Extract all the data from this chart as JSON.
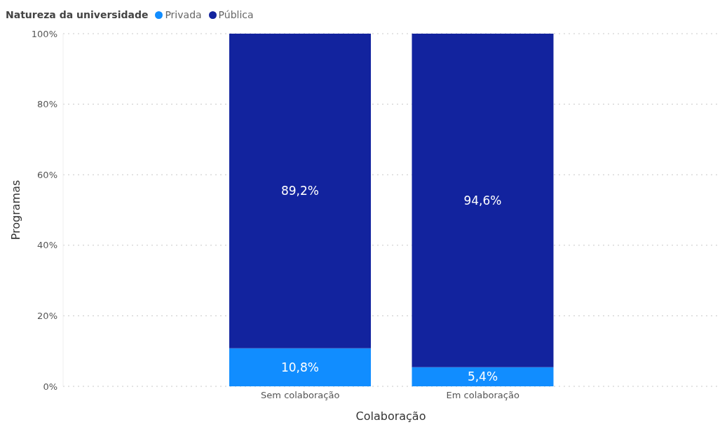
{
  "chart_data": {
    "type": "bar",
    "stacked": true,
    "xlabel": "Colaboração",
    "ylabel": "Programas",
    "legend_title": "Natureza da universidade",
    "legend": "top left",
    "grid": "y",
    "categories": [
      "Sem colaboração",
      "Em colaboração"
    ],
    "series": [
      {
        "name": "Privada",
        "color": "#118dff",
        "values": [
          10.8,
          5.4
        ],
        "value_labels": [
          "10,8%",
          "5,4%"
        ]
      },
      {
        "name": "Pública",
        "color": "#12239e",
        "values": [
          89.2,
          94.6
        ],
        "value_labels": [
          "89,2%",
          "94,6%"
        ]
      }
    ],
    "ylim": [
      0,
      100
    ],
    "yticks": [
      {
        "value": 0,
        "label": "0%"
      },
      {
        "value": 20,
        "label": "20%"
      },
      {
        "value": 40,
        "label": "40%"
      },
      {
        "value": 60,
        "label": "60%"
      },
      {
        "value": 80,
        "label": "80%"
      },
      {
        "value": 100,
        "label": "100%"
      }
    ]
  }
}
